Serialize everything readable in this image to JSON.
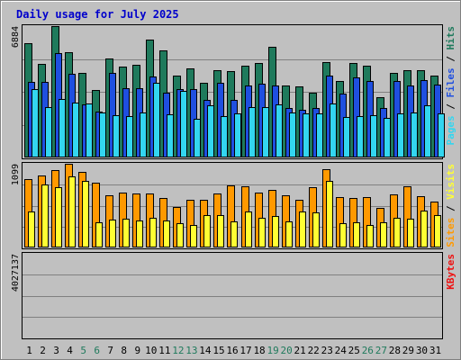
{
  "title": "Daily usage for July 2025",
  "colors": {
    "background": "#c0c0c0",
    "plot_background": "#c0c0c0",
    "title": "#0000cc",
    "hits": "#1f7a5c",
    "files": "#1f4fe0",
    "pages": "#33d6f0",
    "visits": "#ffff33",
    "sites": "#ff9900",
    "kbytes": "#ee1111",
    "weekday_label": "#000000",
    "weekend_label": "#1f7a5c"
  },
  "chart_data": [
    {
      "type": "bar",
      "panel": "top",
      "ymax_label": "6884",
      "ylim": [
        0,
        6884
      ],
      "legend": [
        {
          "label": "Pages",
          "color_key": "pages"
        },
        {
          "label": "/",
          "color_key": "separator"
        },
        {
          "label": "Files",
          "color_key": "files"
        },
        {
          "label": "/",
          "color_key": "separator"
        },
        {
          "label": "Hits",
          "color_key": "hits"
        }
      ],
      "categories": [
        "1",
        "2",
        "3",
        "4",
        "5",
        "6",
        "7",
        "8",
        "9",
        "10",
        "11",
        "12",
        "13",
        "14",
        "15",
        "16",
        "17",
        "18",
        "19",
        "20",
        "21",
        "22",
        "23",
        "24",
        "25",
        "26",
        "27",
        "28",
        "29",
        "30",
        "31"
      ],
      "series": [
        {
          "name": "Hits",
          "color_key": "hits",
          "values": [
            6000,
            4900,
            6884,
            5500,
            4450,
            3540,
            5210,
            4780,
            4880,
            6170,
            5630,
            4290,
            4650,
            3910,
            4570,
            4540,
            4820,
            4950,
            5810,
            3780,
            3740,
            3410,
            4990,
            4020,
            4940,
            4790,
            3170,
            4450,
            4570,
            4570,
            4270
          ]
        },
        {
          "name": "Files",
          "color_key": "files",
          "values": [
            3960,
            3960,
            5470,
            4380,
            2780,
            2390,
            4450,
            3620,
            3640,
            4230,
            3380,
            3590,
            3560,
            3040,
            3910,
            3040,
            3770,
            3870,
            3770,
            2600,
            2520,
            2600,
            4280,
            3350,
            4180,
            4000,
            2600,
            4000,
            3760,
            4060,
            3800
          ]
        },
        {
          "name": "Pages",
          "color_key": "pages",
          "values": [
            3580,
            2660,
            3060,
            2890,
            2810,
            2380,
            2200,
            2180,
            2380,
            3910,
            2250,
            3510,
            2030,
            2730,
            2170,
            2310,
            2640,
            2660,
            2780,
            2380,
            2320,
            2320,
            2850,
            2140,
            2180,
            2200,
            2090,
            2330,
            2380,
            2730,
            2310
          ]
        }
      ]
    },
    {
      "type": "bar",
      "panel": "middle",
      "ymax_label": "1099",
      "ylim": [
        0,
        1099
      ],
      "legend": [
        {
          "label": "Sites",
          "color_key": "sites"
        },
        {
          "label": "/",
          "color_key": "separator"
        },
        {
          "label": "Visits",
          "color_key": "visits"
        }
      ],
      "categories": [
        "1",
        "2",
        "3",
        "4",
        "5",
        "6",
        "7",
        "8",
        "9",
        "10",
        "11",
        "12",
        "13",
        "14",
        "15",
        "16",
        "17",
        "18",
        "19",
        "20",
        "21",
        "22",
        "23",
        "24",
        "25",
        "26",
        "27",
        "28",
        "29",
        "30",
        "31"
      ],
      "series": [
        {
          "name": "Sites",
          "color_key": "sites",
          "values": [
            904,
            950,
            1011,
            1099,
            988,
            846,
            688,
            718,
            713,
            713,
            650,
            528,
            624,
            630,
            711,
            816,
            806,
            716,
            752,
            684,
            627,
            791,
            1025,
            660,
            650,
            664,
            525,
            700,
            800,
            675,
            605
          ]
        },
        {
          "name": "Visits",
          "color_key": "visits",
          "values": [
            474,
            826,
            796,
            932,
            878,
            326,
            366,
            375,
            355,
            388,
            358,
            315,
            298,
            425,
            420,
            346,
            469,
            394,
            419,
            339,
            471,
            455,
            872,
            320,
            330,
            298,
            330,
            390,
            380,
            490,
            430
          ]
        }
      ]
    },
    {
      "type": "bar",
      "panel": "bottom",
      "ymax_label": "4027137",
      "ylim": [
        0,
        4027137
      ],
      "legend": [
        {
          "label": "KBytes",
          "color_key": "kbytes"
        }
      ],
      "categories": [
        "1",
        "2",
        "3",
        "4",
        "5",
        "6",
        "7",
        "8",
        "9",
        "10",
        "11",
        "12",
        "13",
        "14",
        "15",
        "16",
        "17",
        "18",
        "19",
        "20",
        "21",
        "22",
        "23",
        "24",
        "25",
        "26",
        "27",
        "28",
        "29",
        "30",
        "31"
      ],
      "series": [
        {
          "name": "KBytes",
          "color_key": "kbytes",
          "values": [
            2250,
            2090,
            3440,
            4027,
            1420,
            950,
            1450,
            1680,
            1380,
            1360,
            1700,
            1620,
            1000,
            1720,
            1780,
            1180,
            1800,
            1750,
            950,
            800,
            1030,
            2480,
            1700,
            1720,
            1460,
            910,
            1270,
            2080,
            1690,
            2330,
            1620
          ]
        }
      ]
    }
  ],
  "x_labels": [
    {
      "day": "1",
      "weekend": false
    },
    {
      "day": "2",
      "weekend": false
    },
    {
      "day": "3",
      "weekend": false
    },
    {
      "day": "4",
      "weekend": false
    },
    {
      "day": "5",
      "weekend": true
    },
    {
      "day": "6",
      "weekend": true
    },
    {
      "day": "7",
      "weekend": false
    },
    {
      "day": "8",
      "weekend": false
    },
    {
      "day": "9",
      "weekend": false
    },
    {
      "day": "10",
      "weekend": false
    },
    {
      "day": "11",
      "weekend": false
    },
    {
      "day": "12",
      "weekend": true
    },
    {
      "day": "13",
      "weekend": true
    },
    {
      "day": "14",
      "weekend": false
    },
    {
      "day": "15",
      "weekend": false
    },
    {
      "day": "16",
      "weekend": false
    },
    {
      "day": "17",
      "weekend": false
    },
    {
      "day": "18",
      "weekend": false
    },
    {
      "day": "19",
      "weekend": true
    },
    {
      "day": "20",
      "weekend": true
    },
    {
      "day": "21",
      "weekend": false
    },
    {
      "day": "22",
      "weekend": false
    },
    {
      "day": "23",
      "weekend": false
    },
    {
      "day": "24",
      "weekend": false
    },
    {
      "day": "25",
      "weekend": false
    },
    {
      "day": "26",
      "weekend": true
    },
    {
      "day": "27",
      "weekend": true
    },
    {
      "day": "28",
      "weekend": false
    },
    {
      "day": "29",
      "weekend": false
    },
    {
      "day": "30",
      "weekend": false
    },
    {
      "day": "31",
      "weekend": false
    }
  ]
}
